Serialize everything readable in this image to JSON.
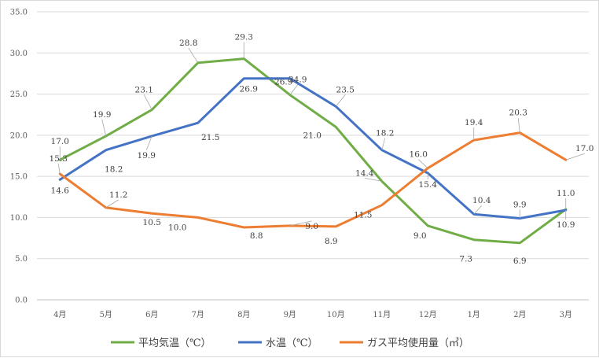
{
  "chart_data": {
    "type": "line",
    "categories": [
      "4月",
      "5月",
      "6月",
      "7月",
      "8月",
      "9月",
      "10月",
      "11月",
      "12月",
      "1月",
      "2月",
      "3月"
    ],
    "ylim": [
      0,
      35
    ],
    "yticks": [
      "0.0",
      "5.0",
      "10.0",
      "15.0",
      "20.0",
      "25.0",
      "30.0",
      "35.0"
    ],
    "grid": true,
    "legend_position": "bottom",
    "series": [
      {
        "name": "平均気温（℃）",
        "color": "#70ad47",
        "values": [
          17.0,
          19.9,
          23.1,
          28.8,
          29.3,
          24.9,
          21.0,
          14.4,
          9.0,
          7.3,
          6.9,
          11.0
        ],
        "labels": [
          "17.0",
          "19.9",
          "23.1",
          "28.8",
          "29.3",
          "24.9",
          "21.0",
          "14.4",
          "9.0",
          "7.3",
          "6.9",
          "11.0"
        ]
      },
      {
        "name": "水温（℃）",
        "color": "#4472c4",
        "values": [
          14.6,
          18.2,
          19.9,
          21.5,
          26.9,
          26.9,
          23.5,
          18.2,
          15.4,
          10.4,
          9.9,
          10.9
        ],
        "labels": [
          "14.6",
          "18.2",
          "19.9",
          "21.5",
          "26.9",
          "26.9",
          "23.5",
          "18.2",
          "15.4",
          "10.4",
          "9.9",
          "10.9"
        ]
      },
      {
        "name": "ガス平均使用量（㎥）",
        "color": "#ed7d31",
        "values": [
          15.3,
          11.2,
          10.5,
          10.0,
          8.8,
          9.0,
          8.9,
          11.5,
          16.0,
          19.4,
          20.3,
          17.0
        ],
        "labels": [
          "15.3",
          "11.2",
          "10.5",
          "10.0",
          "8.8",
          "9.0",
          "8.9",
          "11.5",
          "16.0",
          "19.4",
          "20.3",
          "17.0"
        ]
      }
    ]
  }
}
